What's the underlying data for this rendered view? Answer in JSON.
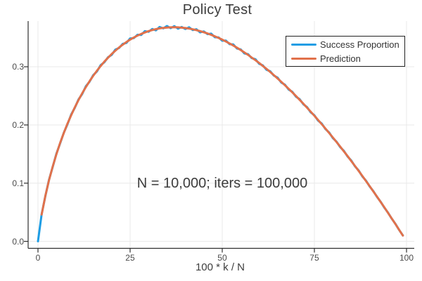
{
  "title": "Policy Test",
  "xlabel": "100 * k / N",
  "annotation": "N = 10,000; iters = 100,000",
  "legend": {
    "items": [
      {
        "label": "Success Proportion",
        "color": "#1E9DE4"
      },
      {
        "label": "Prediction",
        "color": "#E1714B"
      }
    ]
  },
  "colors": {
    "series1": "#1E9DE4",
    "series2": "#E1714B",
    "grid": "#E9E9E9",
    "axis": "#2F2F2F",
    "title_text": "#3C3C3C",
    "tick_text": "#4A4A4A",
    "background": "#FFFFFF"
  },
  "chart_data": {
    "type": "line",
    "title": "Policy Test",
    "xlabel": "100 * k / N",
    "ylabel": "",
    "annotation": "N = 10,000; iters = 100,000",
    "grid": true,
    "legend_position": "top-right",
    "xlim": [
      -2.67,
      102.1
    ],
    "ylim": [
      -0.012,
      0.3785
    ],
    "xticks": [
      0,
      25,
      50,
      75,
      100
    ],
    "xtick_labels": [
      "0",
      "25",
      "50",
      "75",
      "100"
    ],
    "yticks": [
      0,
      0.1,
      0.2,
      0.3
    ],
    "ytick_labels": [
      "0.0",
      "0.1",
      "0.2",
      "0.3"
    ],
    "series": [
      {
        "name": "Success Proportion",
        "color": "#1E9DE4",
        "width": 3,
        "x": [
          0,
          1,
          2,
          3,
          4,
          5,
          6,
          7,
          8,
          9,
          10,
          11,
          12,
          13,
          14,
          15,
          16,
          17,
          18,
          19,
          20,
          21,
          22,
          23,
          24,
          25,
          26,
          27,
          28,
          29,
          30,
          31,
          32,
          33,
          34,
          35,
          36,
          37,
          38,
          39,
          40,
          41,
          42,
          43,
          44,
          45,
          46,
          47,
          48,
          49,
          50,
          51,
          52,
          53,
          54,
          55,
          56,
          57,
          58,
          59,
          60,
          61,
          62,
          63,
          64,
          65,
          66,
          67,
          68,
          69,
          70,
          71,
          72,
          73,
          74,
          75,
          76,
          77,
          78,
          79,
          80,
          81,
          82,
          83,
          84,
          85,
          86,
          87,
          88,
          89,
          90,
          91,
          92,
          93,
          94,
          95,
          96,
          97,
          98,
          99
        ],
        "y": [
          0.0001,
          0.0466,
          0.0778,
          0.1059,
          0.1282,
          0.1507,
          0.168,
          0.1866,
          0.2011,
          0.2179,
          0.2296,
          0.2438,
          0.2532,
          0.2666,
          0.2744,
          0.2857,
          0.2919,
          0.3028,
          0.3076,
          0.3163,
          0.3204,
          0.3295,
          0.3323,
          0.3393,
          0.3409,
          0.3487,
          0.3492,
          0.355,
          0.3546,
          0.3612,
          0.36,
          0.3648,
          0.3626,
          0.3683,
          0.3659,
          0.37,
          0.3663,
          0.3698,
          0.3655,
          0.3684,
          0.3648,
          0.3679,
          0.3631,
          0.3645,
          0.3591,
          0.3607,
          0.3561,
          0.3569,
          0.3507,
          0.3505,
          0.3447,
          0.3449,
          0.3388,
          0.3383,
          0.3313,
          0.3299,
          0.323,
          0.3217,
          0.3149,
          0.3129,
          0.3052,
          0.3024,
          0.2949,
          0.2923,
          0.2848,
          0.2814,
          0.273,
          0.2693,
          0.261,
          0.2569,
          0.2486,
          0.2444,
          0.2356,
          0.2308,
          0.2216,
          0.2166,
          0.2076,
          0.2024,
          0.193,
          0.1871,
          0.1775,
          0.1714,
          0.1619,
          0.1555,
          0.1458,
          0.139,
          0.1291,
          0.1219,
          0.1117,
          0.1043,
          0.0943,
          0.0864,
          0.0762,
          0.0679,
          0.0577,
          0.0491,
          0.0389,
          0.0299,
          0.0196,
          0.0102
        ]
      },
      {
        "name": "Prediction",
        "color": "#E1714B",
        "width": 3,
        "x": [
          1,
          2,
          3,
          4,
          5,
          6,
          7,
          8,
          9,
          10,
          11,
          12,
          13,
          14,
          15,
          16,
          17,
          18,
          19,
          20,
          21,
          22,
          23,
          24,
          25,
          26,
          27,
          28,
          29,
          30,
          31,
          32,
          33,
          34,
          35,
          36,
          37,
          38,
          39,
          40,
          41,
          42,
          43,
          44,
          45,
          46,
          47,
          48,
          49,
          50,
          51,
          52,
          53,
          54,
          55,
          56,
          57,
          58,
          59,
          60,
          61,
          62,
          63,
          64,
          65,
          66,
          67,
          68,
          69,
          70,
          71,
          72,
          73,
          74,
          75,
          76,
          77,
          78,
          79,
          80,
          81,
          82,
          83,
          84,
          85,
          86,
          87,
          88,
          89,
          90,
          91,
          92,
          93,
          94,
          95,
          96,
          97,
          98,
          99
        ],
        "y": [
          0.0461,
          0.0782,
          0.1052,
          0.1288,
          0.1498,
          0.1688,
          0.1862,
          0.2021,
          0.2167,
          0.2303,
          0.2428,
          0.2544,
          0.2652,
          0.2753,
          0.2846,
          0.2932,
          0.3012,
          0.3087,
          0.3155,
          0.3219,
          0.3277,
          0.3331,
          0.338,
          0.3425,
          0.3466,
          0.3502,
          0.3535,
          0.3564,
          0.359,
          0.3612,
          0.3631,
          0.3646,
          0.3659,
          0.3668,
          0.3674,
          0.3678,
          0.3679,
          0.3677,
          0.3672,
          0.3665,
          0.3656,
          0.3644,
          0.3629,
          0.3612,
          0.3593,
          0.3572,
          0.3549,
          0.3523,
          0.3495,
          0.3466,
          0.3434,
          0.34,
          0.3365,
          0.3327,
          0.3288,
          0.3247,
          0.3204,
          0.3159,
          0.3113,
          0.3065,
          0.3015,
          0.2964,
          0.2911,
          0.2856,
          0.28,
          0.2742,
          0.2683,
          0.2623,
          0.2561,
          0.2497,
          0.2432,
          0.2365,
          0.2297,
          0.2228,
          0.2158,
          0.2086,
          0.2013,
          0.1938,
          0.1862,
          0.1785,
          0.1707,
          0.1628,
          0.1547,
          0.1465,
          0.1381,
          0.1297,
          0.1212,
          0.1125,
          0.1037,
          0.0948,
          0.0858,
          0.0767,
          0.0675,
          0.0582,
          0.0487,
          0.0392,
          0.0296,
          0.0198,
          0.01
        ]
      }
    ]
  }
}
